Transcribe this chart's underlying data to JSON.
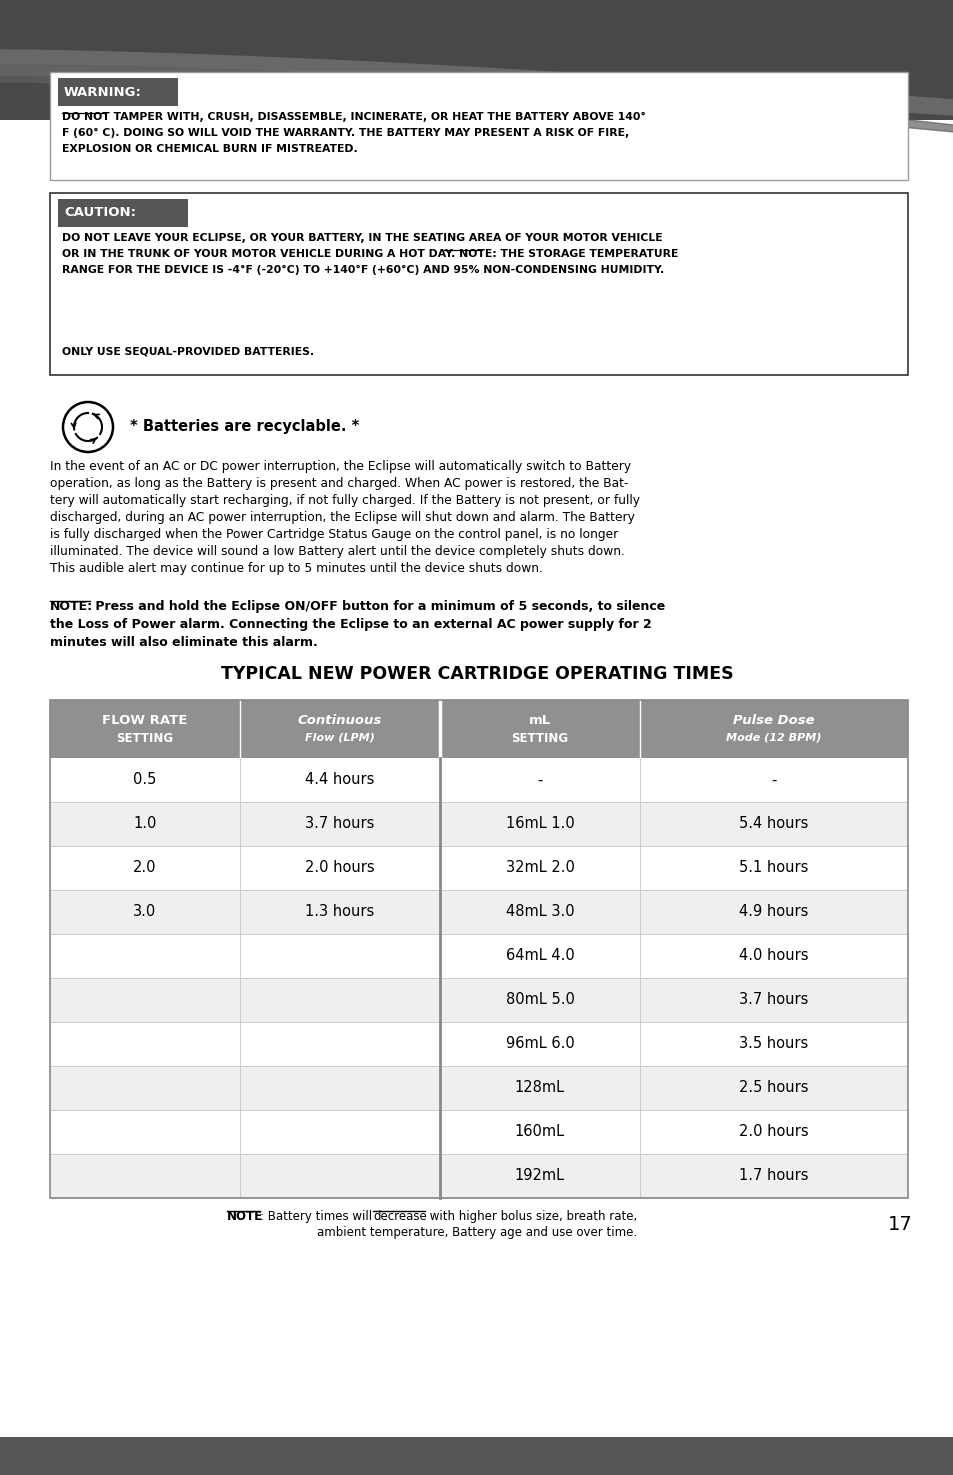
{
  "bg_color": "#ffffff",
  "top_banner_color": "#484848",
  "wave1_color": "#686868",
  "wave2_color": "#585858",
  "bottom_bar_color": "#555555",
  "box_border_color": "#888888",
  "label_bg_color": "#555555",
  "table_header_bg": "#909090",
  "table_divider_color": "#aaaaaa",
  "row_bg_light": "#ffffff",
  "row_bg_dark": "#efefef",
  "warning_title": "WARNING:",
  "warning_line1": "DO NOT TAMPER WITH, CRUSH, DISASSEMBLE, INCINERATE, OR HEAT THE BATTERY ABOVE 140°",
  "warning_line2": "F (60° C). DOING SO WILL VOID THE WARRANTY. THE BATTERY MAY PRESENT A RISK OF FIRE,",
  "warning_line3": "EXPLOSION OR CHEMICAL BURN IF MISTREATED.",
  "caution_title": "CAUTION:",
  "caution_line1": "DO NOT LEAVE YOUR ECLIPSE, OR YOUR BATTERY, IN THE SEATING AREA OF YOUR MOTOR VEHICLE",
  "caution_line2": "OR IN THE TRUNK OF YOUR MOTOR VEHICLE DURING A HOT DAY. NOTE: THE STORAGE TEMPERATURE",
  "caution_line3": "RANGE FOR THE DEVICE IS -4°F (-20°C) TO +140°F (+60°C) AND 95% NON-CONDENSING HUMIDITY.",
  "caution_line4": "ONLY USE SEQUAL-PROVIDED BATTERIES.",
  "battery_text": "* Batteries are recyclable. *",
  "body_lines": [
    "In the event of an AC or DC power interruption, the Eclipse will automatically switch to Battery",
    "operation, as long as the Battery is present and charged. When AC power is restored, the Bat-",
    "tery will automatically start recharging, if not fully charged. If the Battery is not present, or fully",
    "discharged, during an AC power interruption, the Eclipse will shut down and alarm. The Battery",
    "is fully discharged when the Power Cartridge Status Gauge on the control panel, is no longer",
    "illuminated. The device will sound a low Battery alert until the device completely shuts down.",
    "This audible alert may continue for up to 5 minutes until the device shuts down."
  ],
  "note_line1": "NOTE: Press and hold the Eclipse ON/OFF button for a minimum of 5 seconds, to silence",
  "note_line2": "the Loss of Power alarm. Connecting the Eclipse to an external AC power supply for 2",
  "note_line3": "minutes will also eliminate this alarm.",
  "table_title": "TYPICAL NEW POWER CARTRIDGE OPERATING TIMES",
  "col_headers_left": [
    "FLOW RATE",
    "SETTING"
  ],
  "col_headers_cont": [
    "Continuous",
    "Flow (LPM)"
  ],
  "col_headers_ml": [
    "mL",
    "SETTING"
  ],
  "col_headers_pulse": [
    "Pulse Dose",
    "Mode (12 BPM)"
  ],
  "rows": [
    [
      "0.5",
      "4.4 hours",
      "-",
      "-"
    ],
    [
      "1.0",
      "3.7 hours",
      "16mL 1.0",
      "5.4 hours"
    ],
    [
      "2.0",
      "2.0 hours",
      "32mL 2.0",
      "5.1 hours"
    ],
    [
      "3.0",
      "1.3 hours",
      "48mL 3.0",
      "4.9 hours"
    ],
    [
      "",
      "",
      "64mL 4.0",
      "4.0 hours"
    ],
    [
      "",
      "",
      "80mL 5.0",
      "3.7 hours"
    ],
    [
      "",
      "",
      "96mL 6.0",
      "3.5 hours"
    ],
    [
      "",
      "",
      "128mL",
      "2.5 hours"
    ],
    [
      "",
      "",
      "160mL",
      "2.0 hours"
    ],
    [
      "",
      "",
      "192mL",
      "1.7 hours"
    ]
  ],
  "footer_note_bold": "NOTE",
  "footer_note_rest": ": Battery times will ",
  "footer_note_underline": "decrease",
  "footer_note_end": " with higher bolus size, breath rate,",
  "footer_note_line2": "ambient temperature, Battery age and use over time.",
  "page_number": "17"
}
